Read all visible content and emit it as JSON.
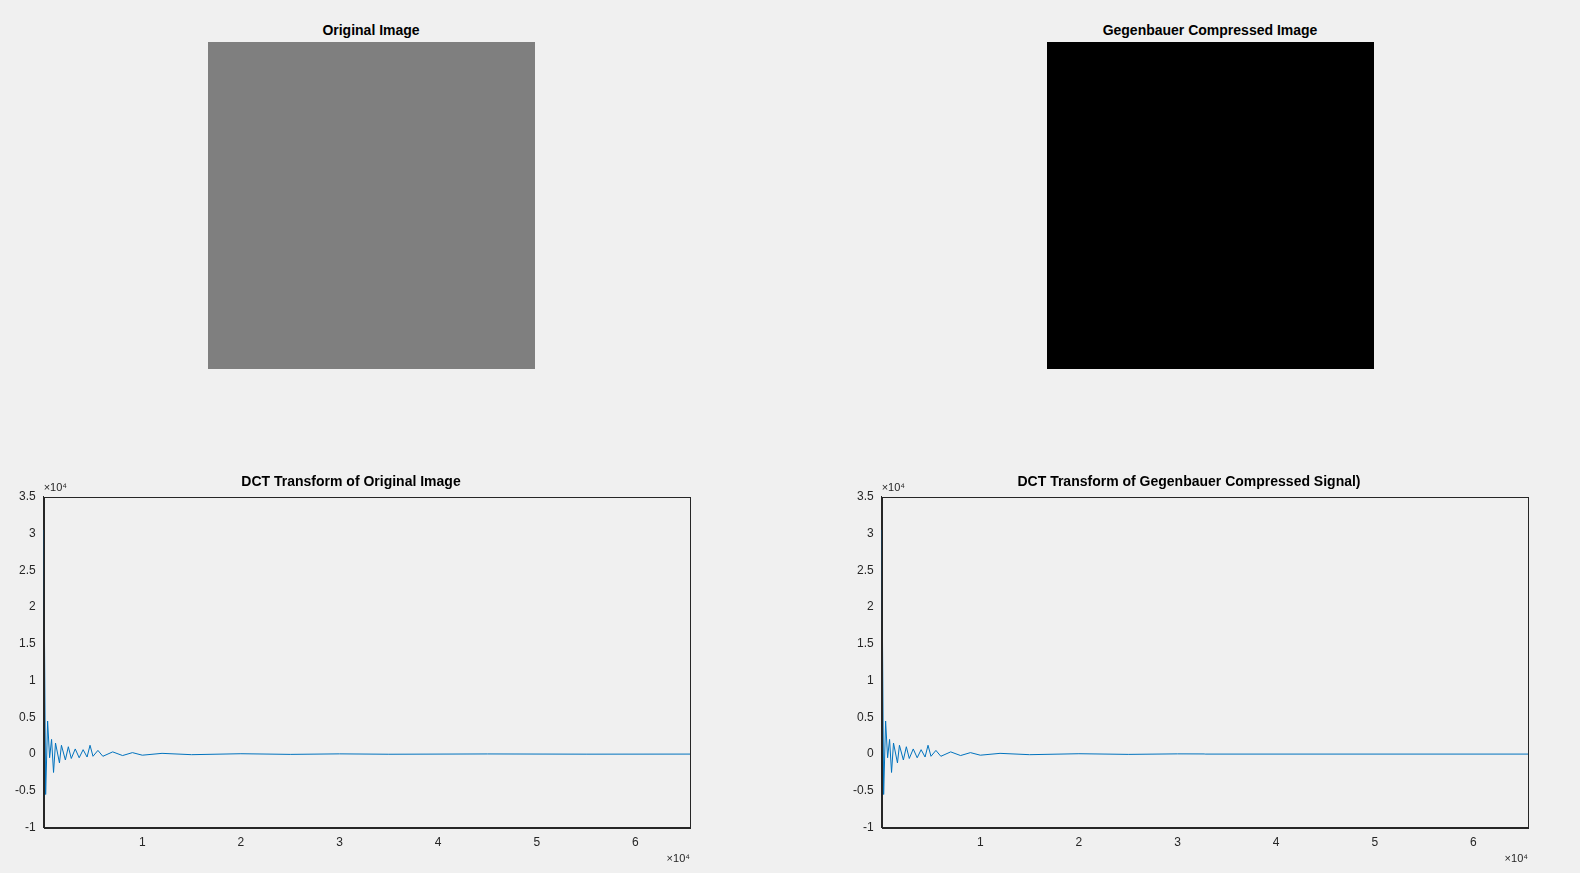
{
  "chart_data": [
    {
      "type": "image",
      "title": "Original Image",
      "color": "#7f7f7f"
    },
    {
      "type": "image",
      "title": "Gegenbauer Compressed Image",
      "color": "#000000"
    },
    {
      "type": "line",
      "title": "DCT Transform of Original Image",
      "color": "#0072bd",
      "grid": false,
      "x": [
        0,
        0.02,
        0.04,
        0.06,
        0.08,
        0.1,
        0.12,
        0.16,
        0.18,
        0.22,
        0.25,
        0.28,
        0.32,
        0.36,
        0.4,
        0.44,
        0.47,
        0.5,
        0.55,
        0.6,
        0.7,
        0.8,
        0.9,
        1.0,
        1.2,
        1.5,
        2.0,
        2.5,
        3.0,
        3.5,
        4.5,
        5.5,
        6.5536
      ],
      "values": [
        3.05,
        -0.55,
        0.45,
        -0.05,
        0.2,
        -0.25,
        0.15,
        -0.12,
        0.12,
        -0.08,
        0.1,
        -0.06,
        0.07,
        -0.05,
        0.06,
        -0.04,
        0.12,
        -0.03,
        0.05,
        -0.03,
        0.03,
        -0.02,
        0.02,
        -0.015,
        0.01,
        -0.008,
        0.005,
        -0.004,
        0.003,
        -0.002,
        0.002,
        -0.001,
        0
      ],
      "xlim": [
        0,
        6.5536
      ],
      "xticks": [
        1,
        2,
        3,
        4,
        5,
        6
      ],
      "x_exponent": "×10⁴",
      "ylim": [
        -1,
        3.5
      ],
      "yticks": [
        -1,
        -0.5,
        0,
        0.5,
        1,
        1.5,
        2,
        2.5,
        3,
        3.5
      ],
      "y_exponent": "×10⁴"
    },
    {
      "type": "line",
      "title": "DCT Transform of Gegenbauer Compressed Signal)",
      "color": "#0072bd",
      "grid": false,
      "x": [
        0,
        0.02,
        0.04,
        0.06,
        0.08,
        0.1,
        0.12,
        0.16,
        0.18,
        0.22,
        0.25,
        0.28,
        0.32,
        0.36,
        0.4,
        0.44,
        0.47,
        0.5,
        0.55,
        0.6,
        0.7,
        0.8,
        0.9,
        1.0,
        1.2,
        1.5,
        2.0,
        2.5,
        3.0,
        3.27,
        3.28,
        6.5536
      ],
      "values": [
        3.05,
        -0.55,
        0.45,
        -0.05,
        0.2,
        -0.25,
        0.15,
        -0.12,
        0.12,
        -0.08,
        0.1,
        -0.06,
        0.07,
        -0.05,
        0.06,
        -0.04,
        0.12,
        -0.03,
        0.05,
        -0.03,
        0.03,
        -0.02,
        0.02,
        -0.015,
        0.01,
        -0.008,
        0.005,
        -0.004,
        0.003,
        0.002,
        0,
        0
      ],
      "xlim": [
        0,
        6.5536
      ],
      "xticks": [
        1,
        2,
        3,
        4,
        5,
        6
      ],
      "x_exponent": "×10⁴",
      "ylim": [
        -1,
        3.5
      ],
      "yticks": [
        -1,
        -0.5,
        0,
        0.5,
        1,
        1.5,
        2,
        2.5,
        3,
        3.5
      ],
      "y_exponent": "×10⁴"
    }
  ]
}
